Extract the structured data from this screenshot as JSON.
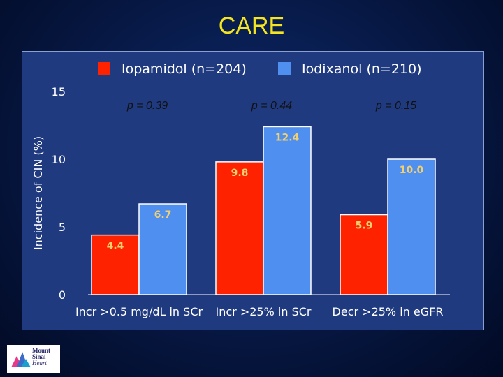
{
  "slide": {
    "title": "CARE"
  },
  "logo": {
    "line1": "Mount",
    "line2": "Sinai",
    "line3": "Heart"
  },
  "colors": {
    "iopamidol": "#ff2200",
    "iodixanol": "#4f8ff0",
    "axis_text": "#ffffff",
    "pvalue_text": "#111111",
    "bar_label": "#f2d070"
  },
  "chart_data": {
    "type": "bar",
    "title": "",
    "xlabel": "",
    "ylabel": "Incidence of CIN (%)",
    "ylim": [
      0,
      15
    ],
    "yticks": [
      "0",
      "5",
      "10",
      "15"
    ],
    "legend_position": "top",
    "categories": [
      "Incr >0.5 mg/dL in SCr",
      "Incr >25% in SCr",
      "Decr >25% in eGFR"
    ],
    "series": [
      {
        "name": "Iopamidol (n=204)",
        "values": [
          4.4,
          9.8,
          5.9
        ],
        "labels": [
          "4.4",
          "9.8",
          "5.9"
        ]
      },
      {
        "name": "Iodixanol (n=210)",
        "values": [
          6.7,
          12.4,
          10.0
        ],
        "labels": [
          "6.7",
          "12.4",
          "10.0"
        ]
      }
    ],
    "annotations": [
      "p = 0.39",
      "p = 0.44",
      "p = 0.15"
    ]
  }
}
